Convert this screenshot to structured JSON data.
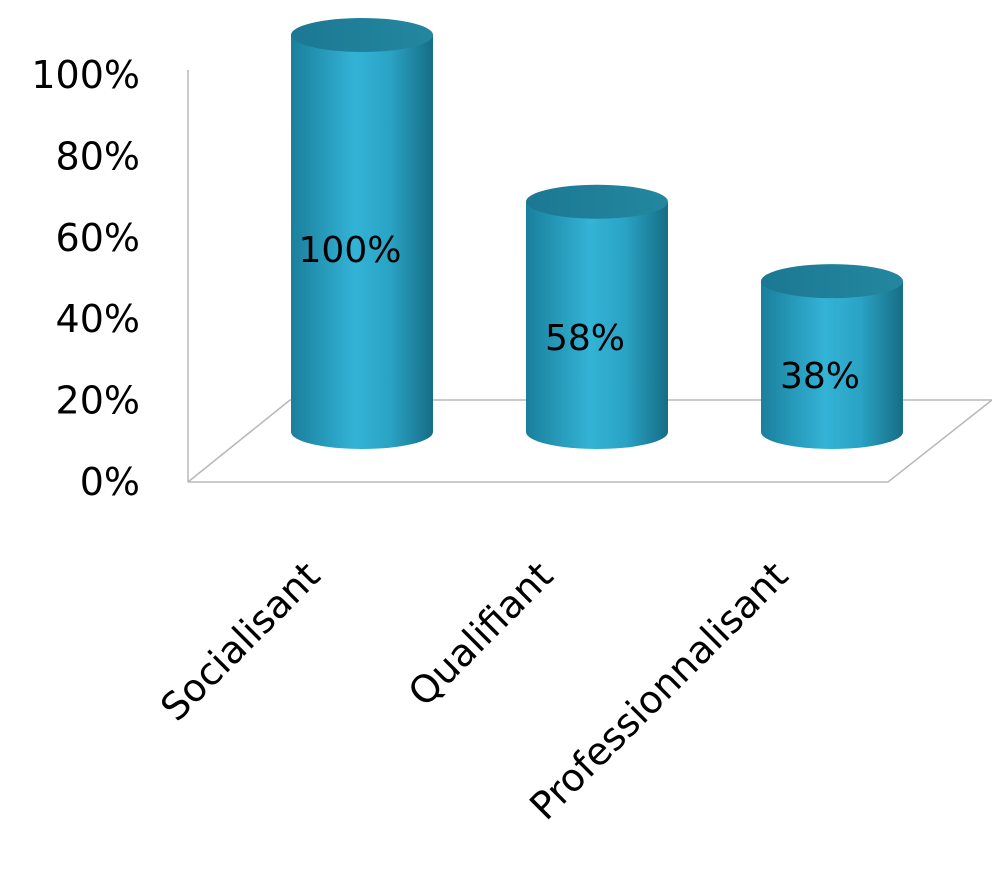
{
  "chart_data": {
    "type": "bar",
    "style": "3d-cylinder",
    "categories": [
      "Socialisant",
      "Qualifiant",
      "Professionnalisant"
    ],
    "values": [
      100,
      58,
      38
    ],
    "data_labels": [
      "100%",
      "58%",
      "38%"
    ],
    "y_ticks": [
      "0%",
      "20%",
      "40%",
      "60%",
      "80%",
      "100%"
    ],
    "ylim": [
      0,
      100
    ],
    "bar_color": "#2aa7c8",
    "grid": false,
    "legend": "none"
  }
}
